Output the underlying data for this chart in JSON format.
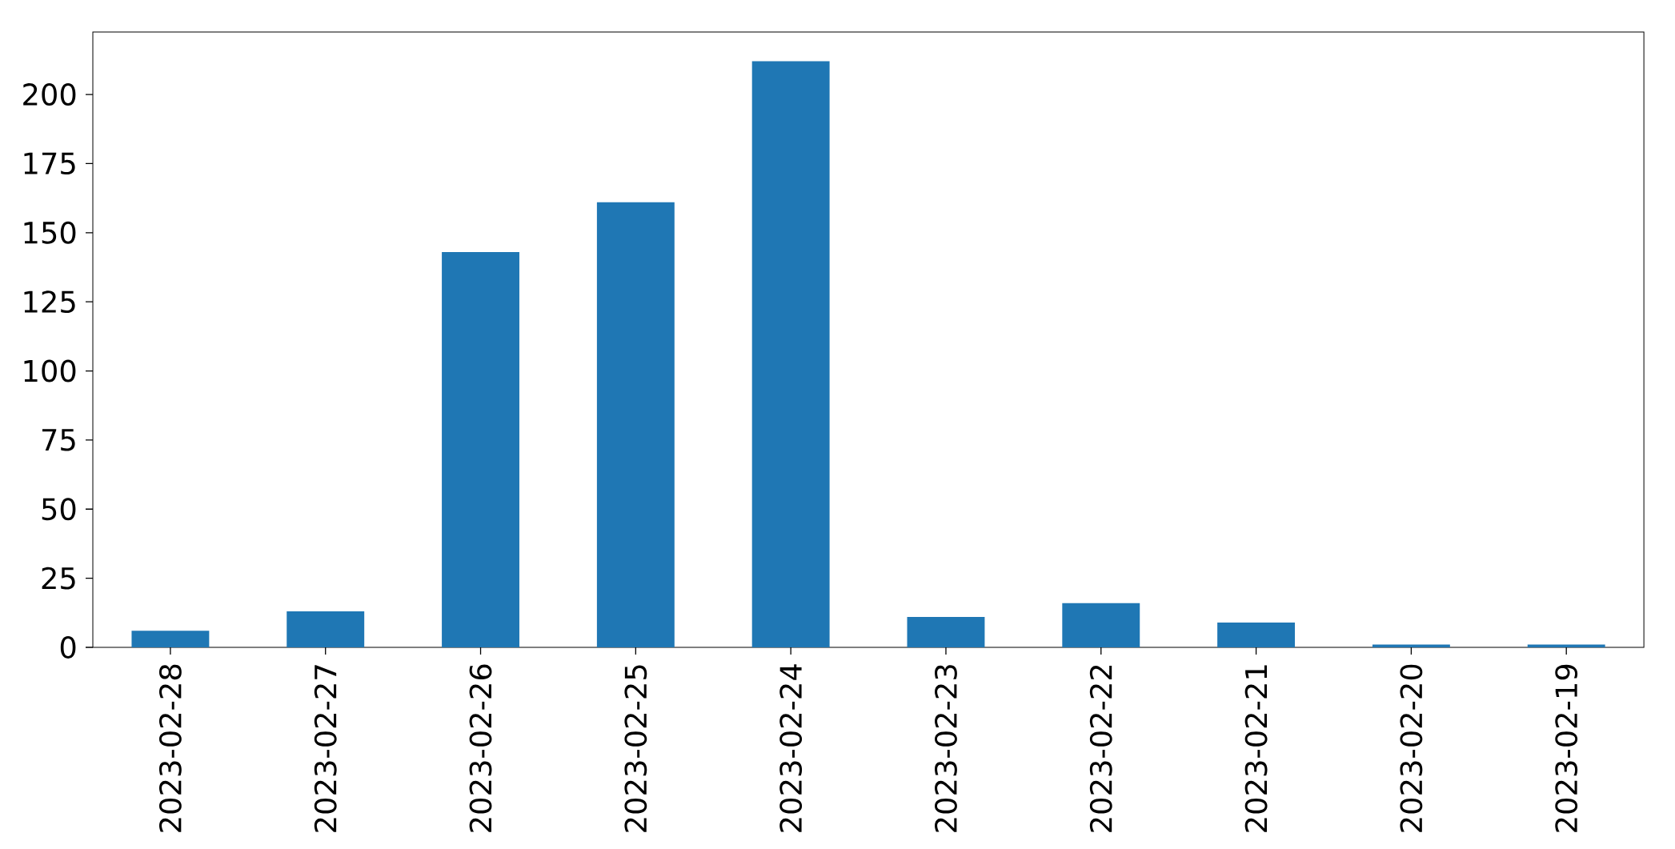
{
  "chart_data": {
    "type": "bar",
    "categories": [
      "2023-02-28",
      "2023-02-27",
      "2023-02-26",
      "2023-02-25",
      "2023-02-24",
      "2023-02-23",
      "2023-02-22",
      "2023-02-21",
      "2023-02-20",
      "2023-02-19"
    ],
    "values": [
      6,
      13,
      143,
      161,
      212,
      11,
      16,
      9,
      1,
      1
    ],
    "color": "#1f77b4",
    "ylim": [
      0,
      222.6
    ],
    "yticks": [
      0,
      25,
      50,
      75,
      100,
      125,
      150,
      175,
      200
    ]
  }
}
